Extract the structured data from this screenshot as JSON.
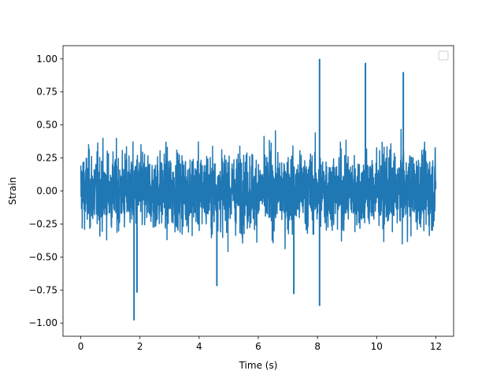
{
  "chart_data": {
    "type": "line",
    "xlabel": "Time (s)",
    "ylabel": "Strain",
    "xlim": [
      -0.6,
      12.6
    ],
    "ylim": [
      -1.1,
      1.1
    ],
    "x_ticks": [
      0,
      2,
      4,
      6,
      8,
      10,
      12
    ],
    "x_tick_labels": [
      "0",
      "2",
      "4",
      "6",
      "8",
      "10",
      "12"
    ],
    "y_ticks": [
      -1.0,
      -0.75,
      -0.5,
      -0.25,
      0.0,
      0.25,
      0.5,
      0.75,
      1.0
    ],
    "y_tick_labels": [
      "−1.00",
      "−0.75",
      "−0.50",
      "−0.25",
      "0.00",
      "0.25",
      "0.50",
      "0.75",
      "1.00"
    ],
    "legend": {
      "placement": "top-right",
      "entries": []
    },
    "grid": false,
    "series": [
      {
        "color": "#1f77b4",
        "x_range": [
          0,
          12
        ],
        "typical_band": [
          -0.45,
          0.45
        ],
        "peaks": [
          {
            "x": 8.07,
            "y": 1.0
          },
          {
            "x": 9.62,
            "y": 0.97
          },
          {
            "x": 10.9,
            "y": 0.9
          },
          {
            "x": 1.8,
            "y": -0.98
          },
          {
            "x": 8.07,
            "y": -0.87
          },
          {
            "x": 1.9,
            "y": -0.77
          },
          {
            "x": 7.2,
            "y": -0.78
          },
          {
            "x": 4.6,
            "y": -0.72
          }
        ]
      }
    ]
  }
}
